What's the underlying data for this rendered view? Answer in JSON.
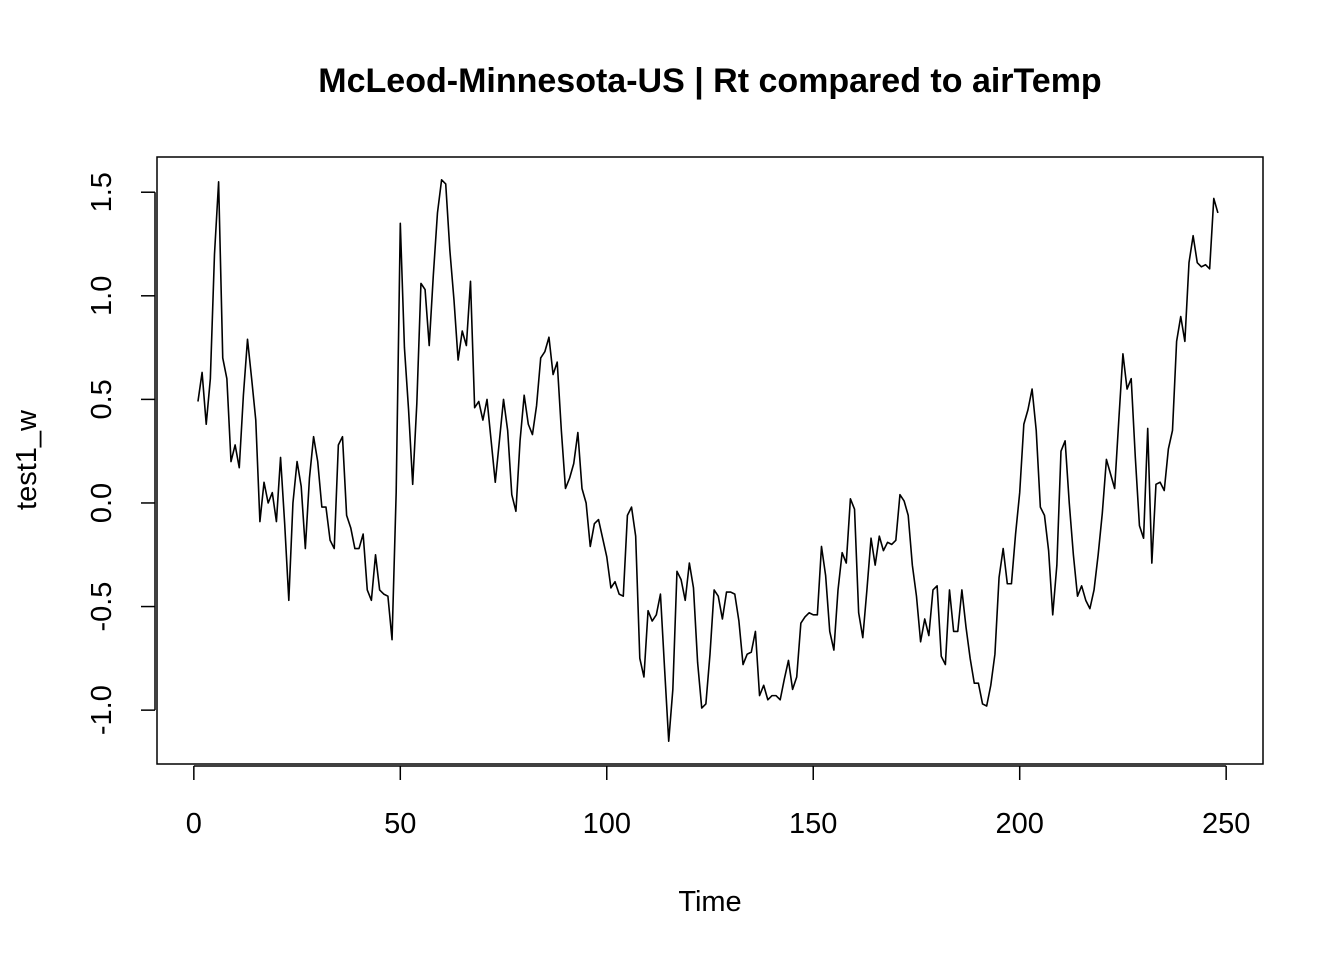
{
  "chart_data": {
    "type": "line",
    "title": "McLeod-Minnesota-US | Rt compared to airTemp",
    "xlabel": "Time",
    "ylabel": "test1_w",
    "xlim": [
      -8.92,
      258.92
    ],
    "ylim": [
      -1.26,
      1.67
    ],
    "xticks": [
      0,
      50,
      100,
      150,
      200,
      250
    ],
    "yticks": [
      -1.0,
      -0.5,
      0.0,
      0.5,
      1.0,
      1.5
    ],
    "ytick_labels": [
      "-1.0",
      "-0.5",
      "0.0",
      "0.5",
      "1.0",
      "1.5"
    ],
    "grid": false,
    "line_color": "#000000",
    "series": [
      {
        "x": [
          1,
          2,
          3,
          4,
          5,
          6,
          7,
          8,
          9,
          10,
          11,
          12,
          13,
          14,
          15,
          16,
          17,
          18,
          19,
          20,
          21,
          22,
          23,
          24,
          25,
          26,
          27,
          28,
          29,
          30,
          31,
          32,
          33,
          34,
          35,
          36,
          37,
          38,
          39,
          40,
          41,
          42,
          43,
          44,
          45,
          46,
          47,
          48,
          49,
          50,
          51,
          52,
          53,
          54,
          55,
          56,
          57,
          58,
          59,
          60,
          61,
          62,
          63,
          64,
          65,
          66,
          67,
          68,
          69,
          70,
          71,
          72,
          73,
          74,
          75,
          76,
          77,
          78,
          79,
          80,
          81,
          82,
          83,
          84,
          85,
          86,
          87,
          88,
          89,
          90,
          91,
          92,
          93,
          94,
          95,
          96,
          97,
          98,
          99,
          100,
          101,
          102,
          103,
          104,
          105,
          106,
          107,
          108,
          109,
          110,
          111,
          112,
          113,
          114,
          115,
          116,
          117,
          118,
          119,
          120,
          121,
          122,
          123,
          124,
          125,
          126,
          127,
          128,
          129,
          130,
          131,
          132,
          133,
          134,
          135,
          136,
          137,
          138,
          139,
          140,
          141,
          142,
          143,
          144,
          145,
          146,
          147,
          148,
          149,
          150,
          151,
          152,
          153,
          154,
          155,
          156,
          157,
          158,
          159,
          160,
          161,
          162,
          163,
          164,
          165,
          166,
          167,
          168,
          169,
          170,
          171,
          172,
          173,
          174,
          175,
          176,
          177,
          178,
          179,
          180,
          181,
          182,
          183,
          184,
          185,
          186,
          187,
          188,
          189,
          190,
          191,
          192,
          193,
          194,
          195,
          196,
          197,
          198,
          199,
          200,
          201,
          202,
          203,
          204,
          205,
          206,
          207,
          208,
          209,
          210,
          211,
          212,
          213,
          214,
          215,
          216,
          217,
          218,
          219,
          220,
          221,
          222,
          223,
          224,
          225,
          226,
          227,
          228,
          229,
          230,
          231,
          232,
          233,
          234,
          235,
          236,
          237,
          238,
          239,
          240,
          241,
          242,
          243,
          244,
          245,
          246,
          247,
          248
        ],
        "values": [
          0.49,
          0.63,
          0.38,
          0.6,
          1.2,
          1.55,
          0.7,
          0.6,
          0.2,
          0.28,
          0.17,
          0.52,
          0.79,
          0.6,
          0.4,
          -0.09,
          0.1,
          0.0,
          0.05,
          -0.09,
          0.22,
          -0.1,
          -0.47,
          0.0,
          0.2,
          0.08,
          -0.22,
          0.12,
          0.32,
          0.2,
          -0.02,
          -0.02,
          -0.18,
          -0.22,
          0.28,
          0.32,
          -0.06,
          -0.12,
          -0.22,
          -0.22,
          -0.15,
          -0.42,
          -0.47,
          -0.25,
          -0.42,
          -0.44,
          -0.45,
          -0.66,
          0.05,
          1.35,
          0.75,
          0.45,
          0.09,
          0.48,
          1.06,
          1.03,
          0.76,
          1.1,
          1.4,
          1.56,
          1.54,
          1.22,
          0.98,
          0.69,
          0.83,
          0.76,
          1.07,
          0.46,
          0.49,
          0.4,
          0.5,
          0.3,
          0.1,
          0.3,
          0.5,
          0.35,
          0.04,
          -0.04,
          0.3,
          0.52,
          0.38,
          0.33,
          0.47,
          0.7,
          0.73,
          0.8,
          0.62,
          0.68,
          0.35,
          0.07,
          0.12,
          0.19,
          0.34,
          0.07,
          0.0,
          -0.21,
          -0.1,
          -0.08,
          -0.17,
          -0.26,
          -0.41,
          -0.38,
          -0.44,
          -0.45,
          -0.06,
          -0.02,
          -0.16,
          -0.75,
          -0.84,
          -0.52,
          -0.57,
          -0.54,
          -0.44,
          -0.8,
          -1.15,
          -0.9,
          -0.33,
          -0.37,
          -0.47,
          -0.29,
          -0.41,
          -0.77,
          -0.99,
          -0.97,
          -0.73,
          -0.42,
          -0.45,
          -0.56,
          -0.43,
          -0.43,
          -0.44,
          -0.57,
          -0.78,
          -0.73,
          -0.72,
          -0.62,
          -0.93,
          -0.88,
          -0.95,
          -0.93,
          -0.93,
          -0.95,
          -0.85,
          -0.76,
          -0.9,
          -0.84,
          -0.58,
          -0.55,
          -0.53,
          -0.54,
          -0.54,
          -0.21,
          -0.35,
          -0.62,
          -0.71,
          -0.42,
          -0.24,
          -0.29,
          0.02,
          -0.03,
          -0.53,
          -0.65,
          -0.42,
          -0.17,
          -0.3,
          -0.16,
          -0.23,
          -0.19,
          -0.2,
          -0.18,
          0.04,
          0.01,
          -0.06,
          -0.3,
          -0.45,
          -0.67,
          -0.56,
          -0.64,
          -0.42,
          -0.4,
          -0.74,
          -0.78,
          -0.42,
          -0.62,
          -0.62,
          -0.42,
          -0.6,
          -0.75,
          -0.87,
          -0.87,
          -0.97,
          -0.98,
          -0.88,
          -0.73,
          -0.36,
          -0.22,
          -0.39,
          -0.39,
          -0.15,
          0.05,
          0.38,
          0.45,
          0.55,
          0.35,
          -0.02,
          -0.06,
          -0.23,
          -0.54,
          -0.3,
          0.25,
          0.3,
          0.0,
          -0.25,
          -0.45,
          -0.4,
          -0.47,
          -0.51,
          -0.42,
          -0.25,
          -0.05,
          0.21,
          0.14,
          0.07,
          0.4,
          0.72,
          0.55,
          0.6,
          0.22,
          -0.11,
          -0.17,
          0.36,
          -0.29,
          0.09,
          0.1,
          0.06,
          0.26,
          0.35,
          0.78,
          0.9,
          0.78,
          1.16,
          1.29,
          1.16,
          1.14,
          1.15,
          1.13,
          1.47,
          1.4
        ]
      }
    ]
  }
}
